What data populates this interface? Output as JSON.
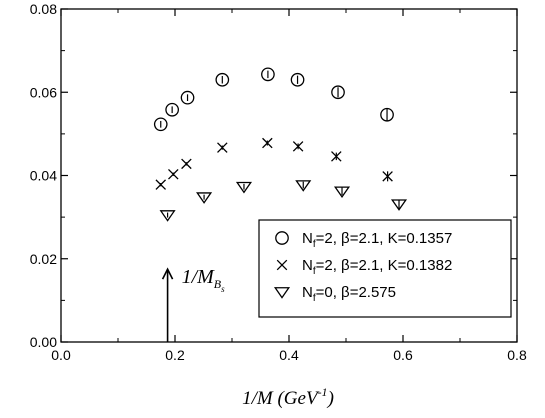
{
  "chart_data": {
    "type": "scatter",
    "xlabel": "1/M (GeV",
    "xlabel_sup": "-1",
    "xlabel_close": ")",
    "ylabel": "",
    "title": "",
    "xlim": [
      0.0,
      0.8
    ],
    "ylim": [
      0.0,
      0.08
    ],
    "xticks": [
      "0.0",
      "0.2",
      "0.4",
      "0.6",
      "0.8"
    ],
    "yticks": [
      "0.00",
      "0.02",
      "0.04",
      "0.06",
      "0.08"
    ],
    "grid": false,
    "legend_position": "bottom-right",
    "series": [
      {
        "marker": "circle",
        "label": {
          "pre": "N",
          "sub": "f",
          "post": "=2, β=2.1, K=0.1357"
        },
        "x": [
          0.175,
          0.195,
          0.222,
          0.283,
          0.363,
          0.415,
          0.486,
          0.572
        ],
        "y": [
          0.0523,
          0.0558,
          0.0587,
          0.063,
          0.0643,
          0.063,
          0.06,
          0.0546
        ],
        "err": [
          0.0008,
          0.0008,
          0.0008,
          0.0009,
          0.0009,
          0.001,
          0.0012,
          0.0014
        ]
      },
      {
        "marker": "cross",
        "label": {
          "pre": "N",
          "sub": "f",
          "post": "=2, β=2.1, K=0.1382"
        },
        "x": [
          0.175,
          0.197,
          0.22,
          0.283,
          0.362,
          0.416,
          0.483,
          0.573
        ],
        "y": [
          0.0378,
          0.0403,
          0.0428,
          0.0467,
          0.0478,
          0.047,
          0.0446,
          0.0398
        ],
        "err": [
          0.0004,
          0.0004,
          0.0004,
          0.0005,
          0.0006,
          0.0007,
          0.0009,
          0.0012
        ]
      },
      {
        "marker": "triangle-down",
        "label": {
          "pre": "N",
          "sub": "f",
          "post": "=0, β=2.575"
        },
        "x": [
          0.187,
          0.251,
          0.321,
          0.425,
          0.493,
          0.593
        ],
        "y": [
          0.0305,
          0.0348,
          0.0373,
          0.0377,
          0.0362,
          0.0331
        ],
        "err": [
          0.0006,
          0.0006,
          0.0007,
          0.0008,
          0.0009,
          0.0011
        ]
      }
    ],
    "annotation": {
      "text": "1/M",
      "sub": "B",
      "subsub": "s",
      "x": 0.187,
      "y_from": 0.0,
      "y_to": 0.0175
    }
  }
}
